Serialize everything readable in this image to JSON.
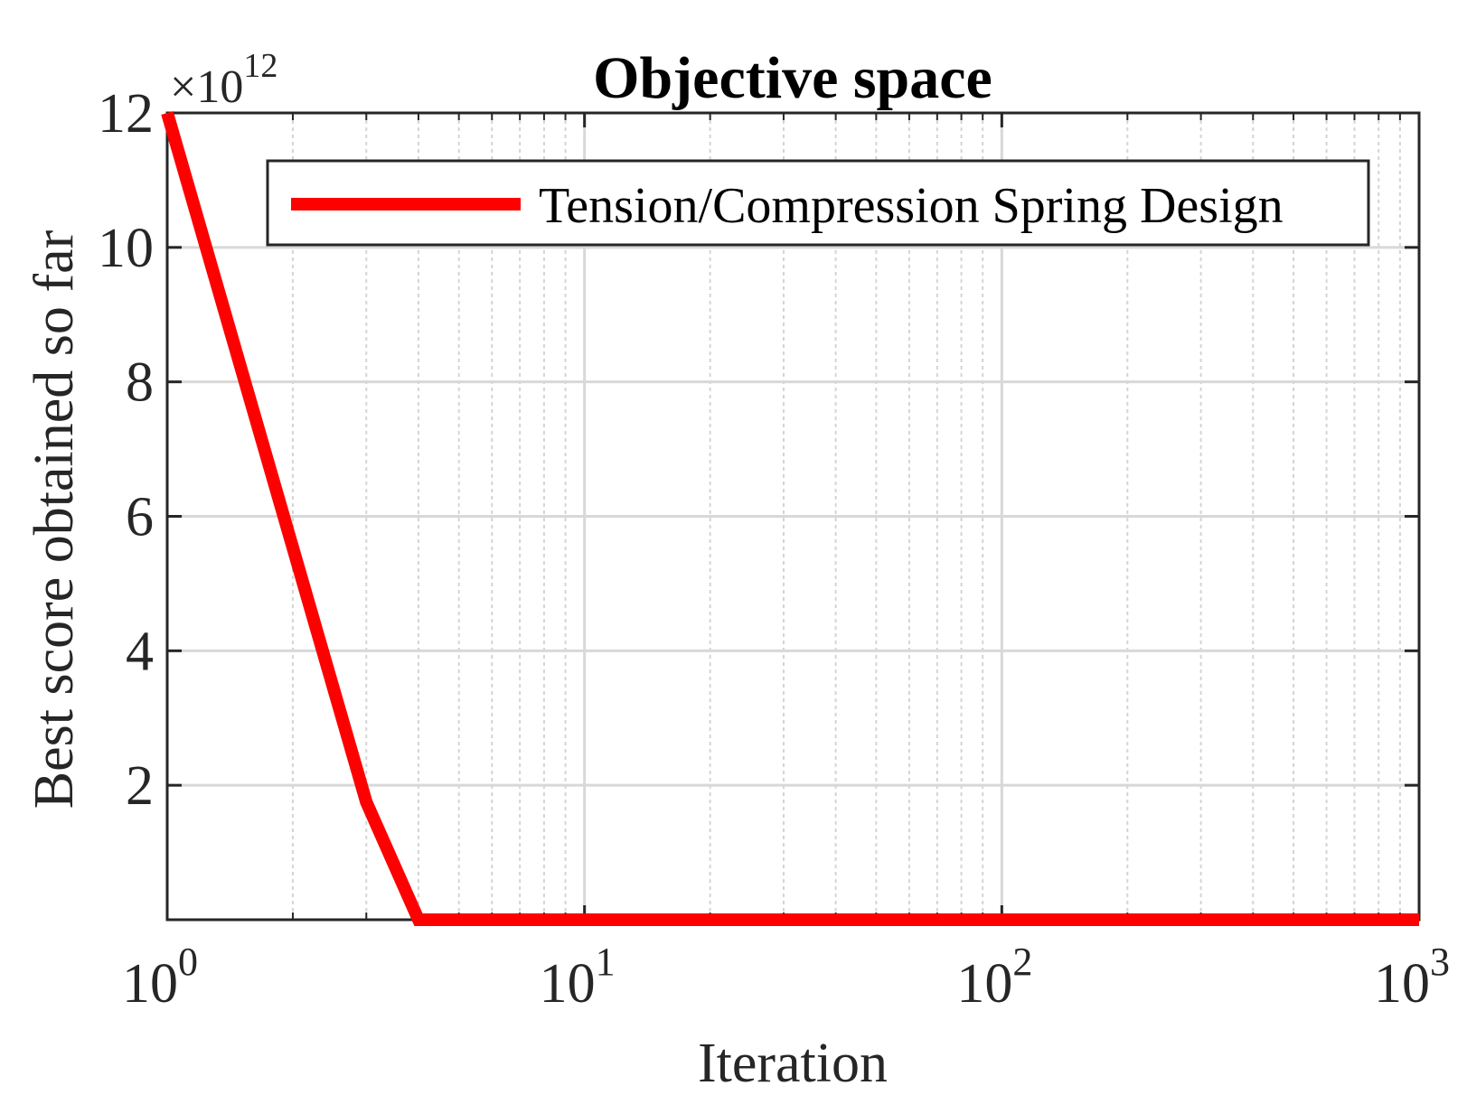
{
  "chart_data": {
    "type": "line",
    "title": "Objective space",
    "xlabel": "Iteration",
    "ylabel": "Best score obtained so far",
    "xscale": "log",
    "xlim": [
      1,
      1000
    ],
    "ylim": [
      0,
      12
    ],
    "y_multiplier_label": "×10",
    "y_multiplier_exponent": "12",
    "x_ticks": [
      {
        "value": 1,
        "base": "10",
        "exp": "0"
      },
      {
        "value": 10,
        "base": "10",
        "exp": "1"
      },
      {
        "value": 100,
        "base": "10",
        "exp": "2"
      },
      {
        "value": 1000,
        "base": "10",
        "exp": "3"
      }
    ],
    "y_ticks": [
      {
        "value": 2,
        "label": "2"
      },
      {
        "value": 4,
        "label": "4"
      },
      {
        "value": 6,
        "label": "6"
      },
      {
        "value": 8,
        "label": "8"
      },
      {
        "value": 10,
        "label": "10"
      },
      {
        "value": 12,
        "label": "12"
      }
    ],
    "grid": true,
    "legend_position": "top-right",
    "series": [
      {
        "name": "Tension/Compression Spring Design",
        "color": "#ff0000",
        "x": [
          1,
          3,
          4,
          1000
        ],
        "y": [
          12,
          1.75,
          0,
          0
        ]
      }
    ]
  }
}
